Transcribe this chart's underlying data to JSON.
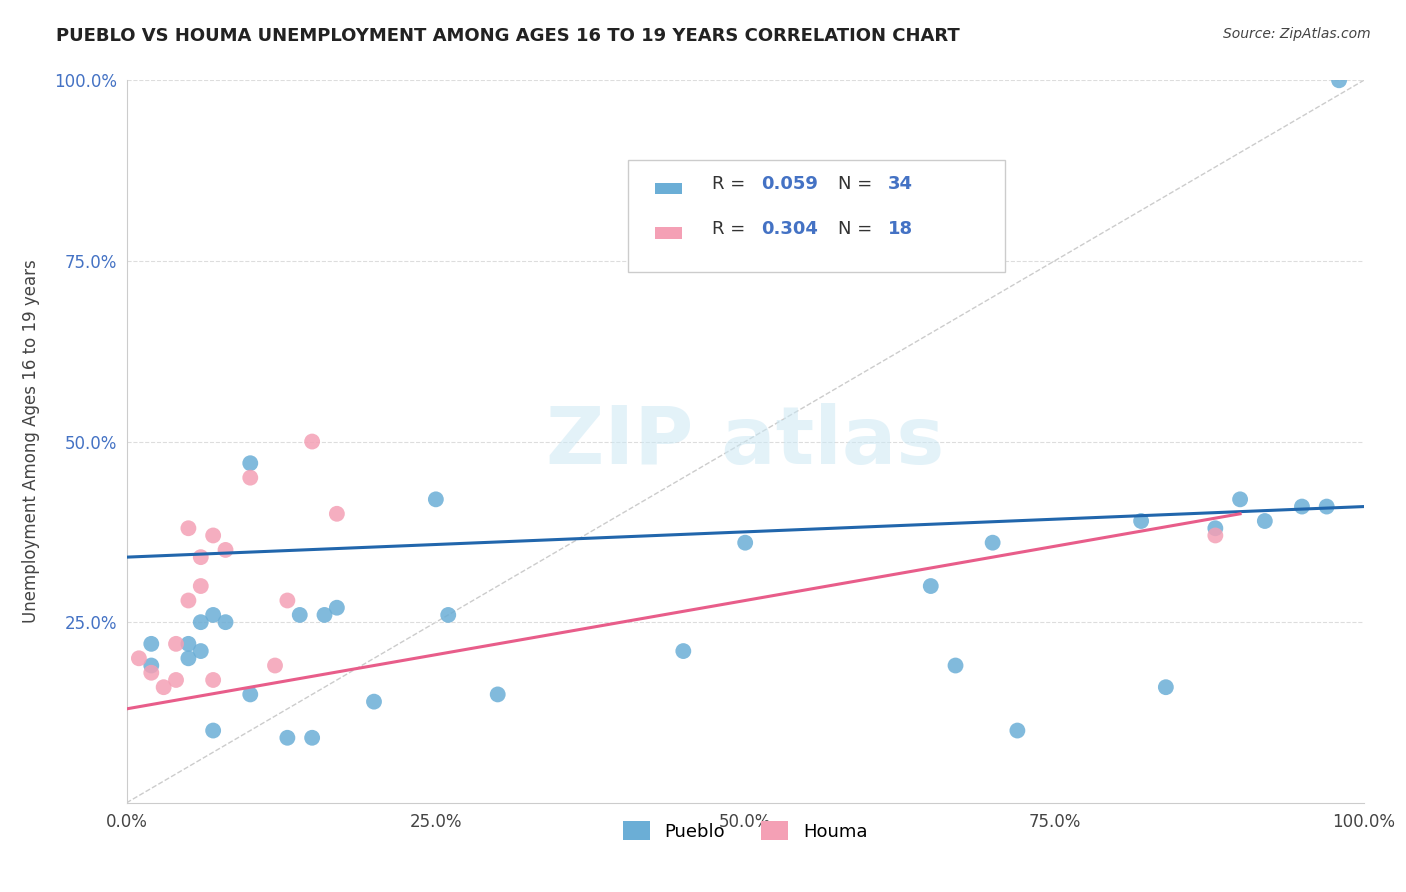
{
  "title": "PUEBLO VS HOUMA UNEMPLOYMENT AMONG AGES 16 TO 19 YEARS CORRELATION CHART",
  "source": "Source: ZipAtlas.com",
  "ylabel": "Unemployment Among Ages 16 to 19 years",
  "xlim": [
    0,
    1.0
  ],
  "ylim": [
    0,
    1.0
  ],
  "xticks": [
    0.0,
    0.25,
    0.5,
    0.75,
    1.0
  ],
  "yticks": [
    0.0,
    0.25,
    0.5,
    0.75,
    1.0
  ],
  "xticklabels": [
    "0.0%",
    "25.0%",
    "50.0%",
    "75.0%",
    "100.0%"
  ],
  "yticklabels": [
    "",
    "25.0%",
    "50.0%",
    "75.0%",
    "100.0%"
  ],
  "pueblo_R": 0.059,
  "pueblo_N": 34,
  "houma_R": 0.304,
  "houma_N": 18,
  "pueblo_color": "#6baed6",
  "houma_color": "#f4a0b5",
  "pueblo_line_color": "#2166ac",
  "houma_line_color": "#e85d8a",
  "background_color": "#ffffff",
  "pueblo_x": [
    0.02,
    0.02,
    0.05,
    0.05,
    0.06,
    0.06,
    0.07,
    0.07,
    0.08,
    0.1,
    0.1,
    0.13,
    0.14,
    0.15,
    0.16,
    0.17,
    0.2,
    0.25,
    0.26,
    0.3,
    0.45,
    0.5,
    0.65,
    0.67,
    0.7,
    0.72,
    0.82,
    0.84,
    0.88,
    0.9,
    0.92,
    0.95,
    0.97,
    0.98
  ],
  "pueblo_y": [
    0.19,
    0.22,
    0.2,
    0.22,
    0.21,
    0.25,
    0.1,
    0.26,
    0.25,
    0.15,
    0.47,
    0.09,
    0.26,
    0.09,
    0.26,
    0.27,
    0.14,
    0.42,
    0.26,
    0.15,
    0.21,
    0.36,
    0.3,
    0.19,
    0.36,
    0.1,
    0.39,
    0.16,
    0.38,
    0.42,
    0.39,
    0.41,
    0.41,
    1.0
  ],
  "houma_x": [
    0.01,
    0.02,
    0.03,
    0.04,
    0.04,
    0.05,
    0.05,
    0.06,
    0.06,
    0.07,
    0.07,
    0.08,
    0.1,
    0.12,
    0.13,
    0.15,
    0.17,
    0.88
  ],
  "houma_y": [
    0.2,
    0.18,
    0.16,
    0.22,
    0.17,
    0.28,
    0.38,
    0.3,
    0.34,
    0.17,
    0.37,
    0.35,
    0.45,
    0.19,
    0.28,
    0.5,
    0.4,
    0.37
  ],
  "pueblo_line_x": [
    0.0,
    1.0
  ],
  "pueblo_line_y": [
    0.34,
    0.41
  ],
  "houma_line_x": [
    0.0,
    0.9
  ],
  "houma_line_y": [
    0.13,
    0.4
  ],
  "diag_line_color": "#cccccc",
  "grid_line_color": "#dddddd",
  "tick_color": "#4472c4",
  "title_color": "#222222",
  "label_color": "#444444"
}
